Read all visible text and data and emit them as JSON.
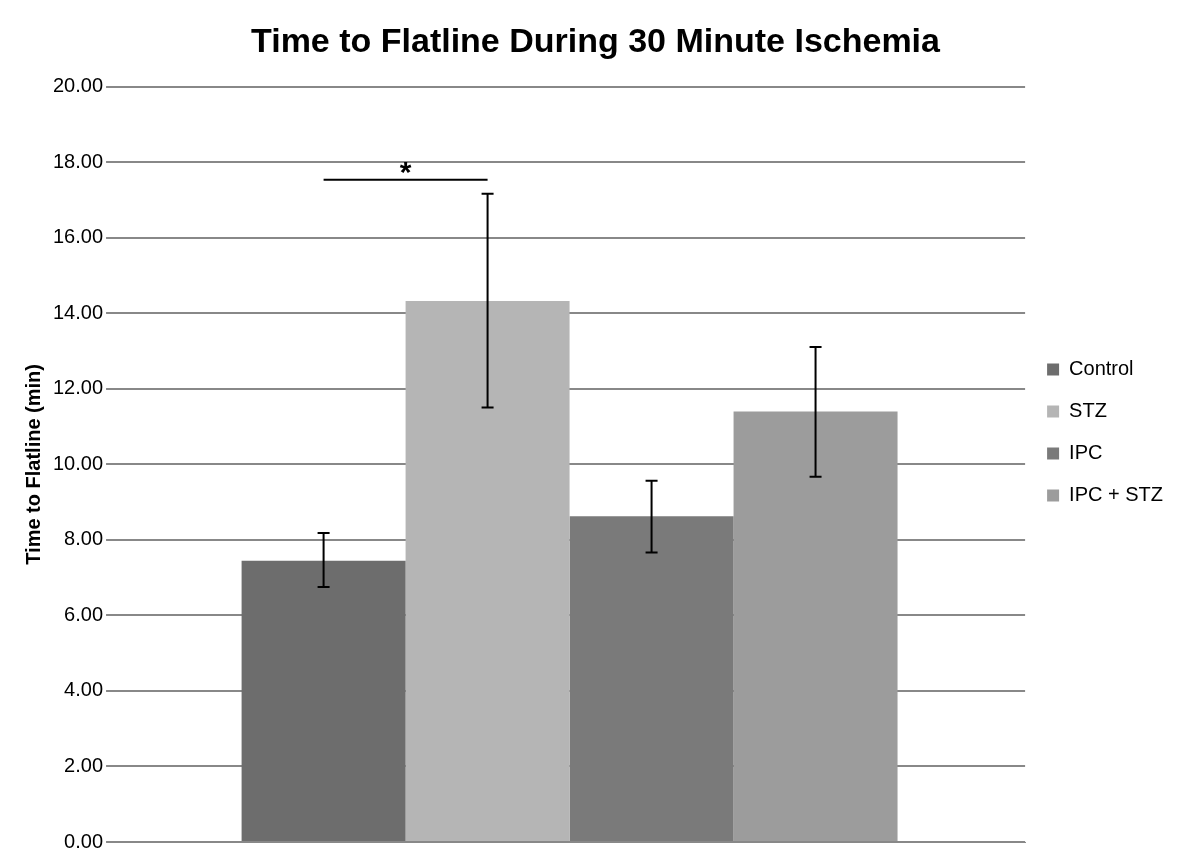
{
  "chart_data": {
    "type": "bar",
    "title": "Time to Flatline During 30 Minute Ischemia",
    "ylabel": "Time to Flatline (min)",
    "categories": [
      null
    ],
    "series": [
      {
        "name": "Control",
        "color": "#6d6d6d",
        "values": [
          7.45
        ],
        "errors": [
          [
            6.75,
            8.18
          ]
        ]
      },
      {
        "name": "STZ",
        "color": "#b5b5b5",
        "values": [
          14.33
        ],
        "errors": [
          [
            11.51,
            17.17
          ]
        ]
      },
      {
        "name": "IPC",
        "color": "#7a7a7a",
        "values": [
          8.63
        ],
        "errors": [
          [
            7.67,
            9.57
          ]
        ]
      },
      {
        "name": "IPC + STZ",
        "color": "#9c9c9c",
        "values": [
          11.4
        ],
        "errors": [
          [
            9.67,
            13.11
          ]
        ]
      }
    ],
    "ylim": [
      0,
      20
    ],
    "yticks": [
      {
        "value": 0,
        "label": "0.00"
      },
      {
        "value": 2,
        "label": "2.00"
      },
      {
        "value": 4,
        "label": "4.00"
      },
      {
        "value": 6,
        "label": "6.00"
      },
      {
        "value": 8,
        "label": "8.00"
      },
      {
        "value": 10,
        "label": "10.00"
      },
      {
        "value": 12,
        "label": "12.00"
      },
      {
        "value": 14,
        "label": "14.00"
      },
      {
        "value": 16,
        "label": "16.00"
      },
      {
        "value": 18,
        "label": "18.00"
      },
      {
        "value": 20,
        "label": "20.00"
      }
    ],
    "annotations": [
      "*"
    ],
    "grid": "y",
    "legend": "right"
  }
}
